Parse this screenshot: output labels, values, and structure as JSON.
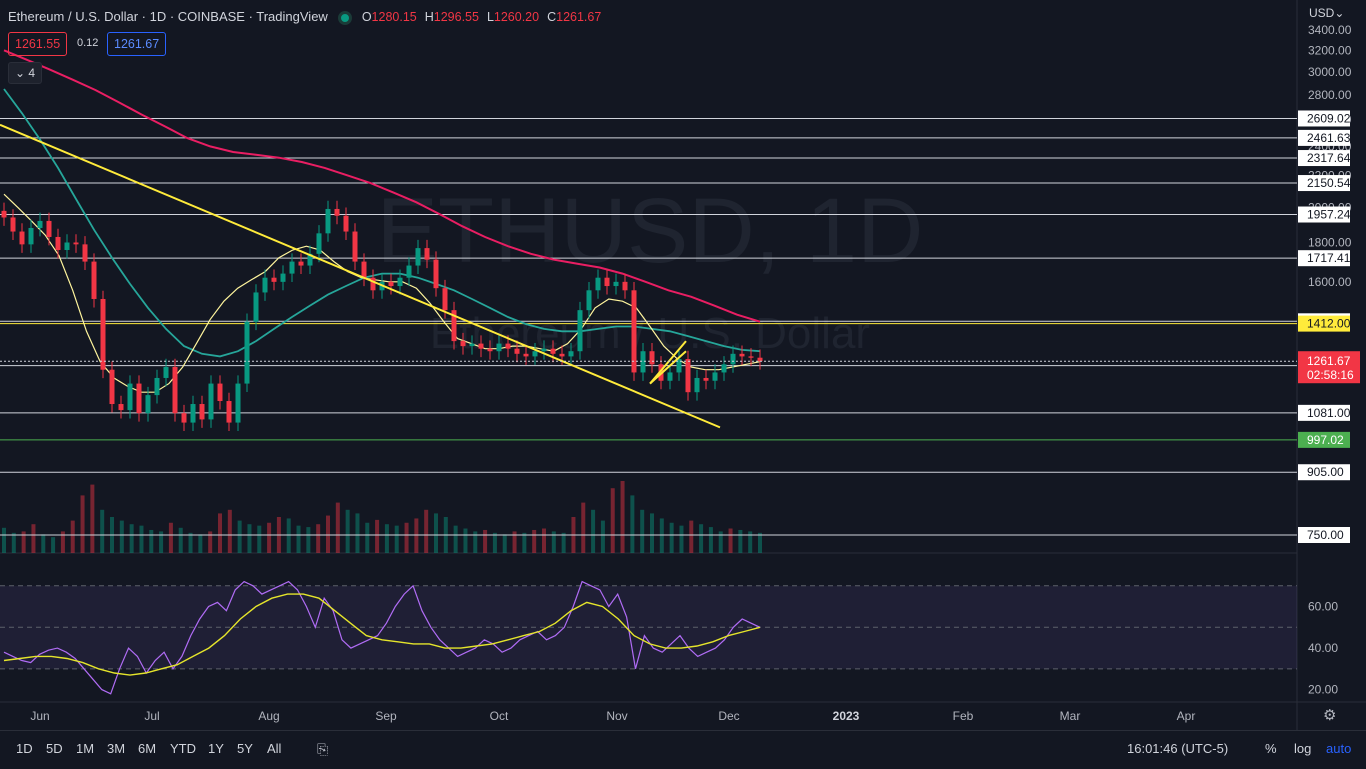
{
  "header": {
    "symbol_title": "Ethereum / U.S. Dollar · 1D · COINBASE · TradingView",
    "ohlc": [
      {
        "k": "O",
        "v": "1280.15"
      },
      {
        "k": "H",
        "v": "1296.55"
      },
      {
        "k": "L",
        "v": "1260.20"
      },
      {
        "k": "C",
        "v": "1261.67"
      }
    ],
    "sell_price": "1261.55",
    "spread": "0.12",
    "buy_price": "1261.67",
    "indicators_toggle": "4"
  },
  "currency_menu": "USD",
  "watermark": {
    "line1": "ETHUSD, 1D",
    "line2": "Ethereum / U.S. Dollar"
  },
  "colors": {
    "background": "#131722",
    "candle_up": "#089981",
    "candle_down": "#f23645",
    "trendline": "#ffeb3b",
    "ma_200": "#e91e63",
    "ma_50": "#26a69a",
    "ma_20": "#fff59d",
    "ma_8": "#2196f3",
    "rsi": "#b06cf5",
    "rsi_ma": "#e5e52b"
  },
  "chart_data": {
    "type": "candlestick",
    "x_ticks": [
      "Jun",
      "Jul",
      "Aug",
      "Sep",
      "Oct",
      "Nov",
      "Dec",
      "2023",
      "Feb",
      "Mar",
      "Apr"
    ],
    "y_ticks": [
      "3400.00",
      "3200.00",
      "3000.00",
      "2800.00",
      "2600.00",
      "2400.00",
      "2200.00",
      "2000.00",
      "1800.00",
      "1600.00"
    ],
    "y_range": [
      700,
      3450
    ],
    "price_levels": [
      "2609.02",
      "2461.63",
      "2317.64",
      "2150.54",
      "1957.24",
      "1717.41",
      "1421.80",
      "1412.00",
      "1245.00",
      "1081.00",
      "997.02",
      "905.00",
      "750.00"
    ],
    "last_price": "1261.67",
    "countdown": "02:58:16",
    "green_level": "997.02",
    "yellow_level": "1412.00",
    "close_series": [
      1940,
      1860,
      1790,
      1880,
      1920,
      1830,
      1760,
      1800,
      1790,
      1700,
      1520,
      1230,
      1110,
      1090,
      1180,
      1080,
      1140,
      1200,
      1240,
      1080,
      1050,
      1110,
      1060,
      1180,
      1120,
      1050,
      1180,
      1420,
      1550,
      1620,
      1600,
      1640,
      1700,
      1680,
      1740,
      1850,
      1990,
      1950,
      1860,
      1700,
      1620,
      1560,
      1600,
      1580,
      1620,
      1680,
      1770,
      1710,
      1570,
      1470,
      1340,
      1320,
      1330,
      1310,
      1300,
      1330,
      1310,
      1290,
      1280,
      1300,
      1310,
      1290,
      1280,
      1300,
      1470,
      1560,
      1620,
      1580,
      1600,
      1560,
      1220,
      1300,
      1250,
      1190,
      1220,
      1270,
      1150,
      1200,
      1190,
      1220,
      1250,
      1290,
      1280,
      1275,
      1262
    ],
    "ma200_series": [
      3200,
      3110,
      3020,
      2930,
      2840,
      2740,
      2640,
      2550,
      2460,
      2400,
      2360,
      2340,
      2320,
      2290,
      2250,
      2200,
      2150,
      2090,
      2030,
      1960,
      1890,
      1830,
      1780,
      1740,
      1710,
      1690,
      1670,
      1640,
      1600,
      1560,
      1530,
      1490,
      1450,
      1420
    ],
    "ma50_series": [
      2850,
      2650,
      2450,
      2250,
      2050,
      1870,
      1720,
      1590,
      1480,
      1390,
      1320,
      1290,
      1280,
      1300,
      1340,
      1390,
      1440,
      1490,
      1540,
      1580,
      1620,
      1640,
      1640,
      1620,
      1590,
      1560,
      1520,
      1480,
      1440,
      1410,
      1390,
      1380,
      1380,
      1390,
      1400,
      1400,
      1390,
      1380,
      1360,
      1340,
      1320,
      1305,
      1300
    ],
    "ma20_series": [
      2080,
      2000,
      1920,
      1840,
      1730,
      1560,
      1380,
      1260,
      1200,
      1170,
      1150,
      1150,
      1180,
      1240,
      1330,
      1430,
      1510,
      1570,
      1610,
      1650,
      1720,
      1760,
      1780,
      1760,
      1700,
      1650,
      1620,
      1610,
      1600,
      1600,
      1570,
      1500,
      1420,
      1350,
      1330,
      1310,
      1310,
      1320,
      1320,
      1310,
      1300,
      1330,
      1390,
      1480,
      1520,
      1510,
      1480,
      1400,
      1320,
      1270,
      1240,
      1230,
      1230,
      1240,
      1250,
      1260
    ],
    "trendline_1": {
      "from": {
        "x": 0.0,
        "price": 2560
      },
      "to": {
        "x": 0.535,
        "price": 1170
      }
    },
    "trendline_2": {
      "from": {
        "x": 0.5,
        "price": 1120
      },
      "to": {
        "x": 0.585,
        "price": 1360
      }
    },
    "volume_series": [
      35,
      28,
      30,
      40,
      26,
      22,
      30,
      45,
      80,
      95,
      60,
      50,
      45,
      40,
      38,
      32,
      30,
      42,
      35,
      28,
      26,
      30,
      55,
      60,
      45,
      40,
      38,
      42,
      50,
      48,
      38,
      36,
      40,
      52,
      70,
      60,
      55,
      42,
      46,
      40,
      38,
      42,
      48,
      60,
      55,
      50,
      38,
      34,
      30,
      32,
      28,
      26,
      30,
      28,
      32,
      34,
      30,
      28,
      50,
      70,
      60,
      45,
      90,
      100,
      80,
      60,
      55,
      48,
      42,
      38,
      45,
      40,
      36,
      30,
      34,
      32,
      30,
      28
    ],
    "rsi": {
      "y_ticks": [
        "60.00",
        "40.00",
        "20.00"
      ],
      "y_range": [
        15,
        80
      ],
      "bands": [
        70,
        50,
        30
      ],
      "rsi_series": [
        38,
        36,
        34,
        33,
        37,
        39,
        40,
        38,
        35,
        30,
        25,
        20,
        18,
        30,
        40,
        36,
        28,
        34,
        38,
        30,
        36,
        46,
        54,
        60,
        62,
        58,
        68,
        72,
        70,
        66,
        68,
        70,
        72,
        68,
        60,
        50,
        64,
        58,
        44,
        40,
        42,
        44,
        46,
        52,
        60,
        66,
        70,
        58,
        50,
        44,
        40,
        36,
        38,
        40,
        44,
        42,
        38,
        40,
        44,
        46,
        48,
        44,
        46,
        50,
        60,
        72,
        70,
        68,
        60,
        66,
        55,
        30,
        46,
        40,
        38,
        42,
        46,
        40,
        36,
        38,
        40,
        44,
        50,
        54,
        52,
        50
      ],
      "rsi_ma_series": [
        34,
        35,
        36,
        36,
        35,
        33,
        30,
        28,
        27,
        28,
        30,
        32,
        36,
        40,
        46,
        54,
        60,
        64,
        66,
        66,
        64,
        58,
        52,
        46,
        44,
        43,
        42,
        42,
        40,
        40,
        41,
        42,
        44,
        46,
        48,
        52,
        58,
        62,
        60,
        54,
        46,
        42,
        40,
        40,
        41,
        43,
        46,
        48,
        50
      ]
    }
  },
  "footer": {
    "timeframes": [
      "1D",
      "5D",
      "1M",
      "3M",
      "6M",
      "YTD",
      "1Y",
      "5Y",
      "All"
    ],
    "clock": "16:01:46 (UTC-5)",
    "percent": "%",
    "log": "log",
    "auto": "auto"
  }
}
